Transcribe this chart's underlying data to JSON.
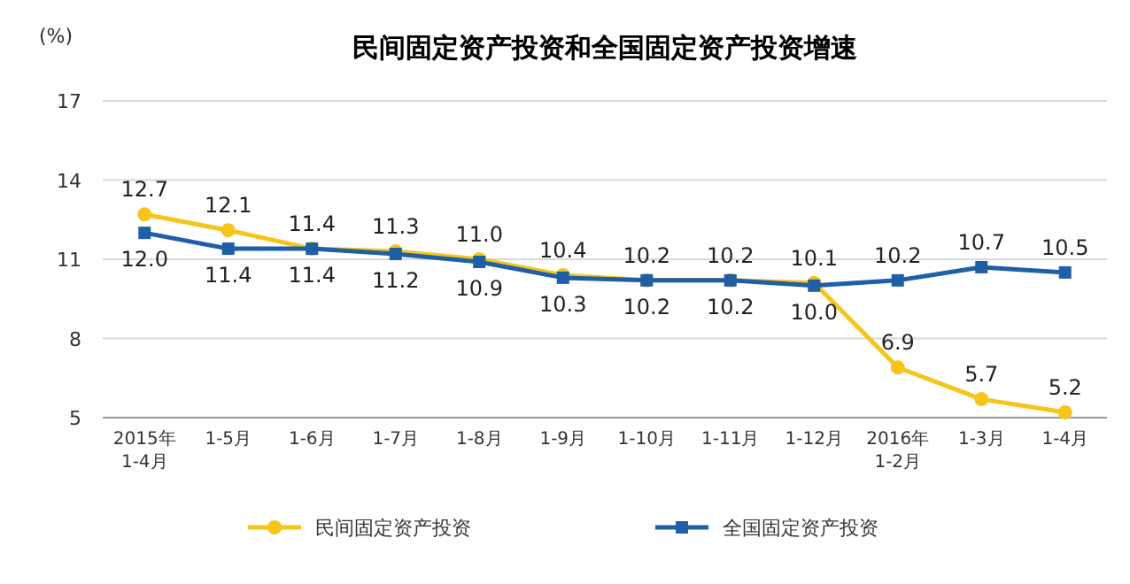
{
  "chart_data": {
    "type": "line",
    "title": "民间固定资产投资和全国固定资产投资增速",
    "ylabel": "(%)",
    "categories": [
      "2015年 1-4月",
      "1-5月",
      "1-6月",
      "1-7月",
      "1-8月",
      "1-9月",
      "1-10月",
      "1-11月",
      "1-12月",
      "2016年 1-2月",
      "1-3月",
      "1-4月"
    ],
    "series": [
      {
        "name": "民间固定资产投资",
        "color": "#f5c518",
        "marker": "circle",
        "values": [
          12.7,
          12.1,
          11.4,
          11.3,
          11.0,
          10.4,
          10.2,
          10.2,
          10.1,
          6.9,
          5.7,
          5.2
        ],
        "value_labels": [
          "12.7",
          "12.1",
          "11.4",
          "11.3",
          "11.0",
          "10.4",
          "10.2",
          "10.2",
          "10.1",
          "6.9",
          "5.7",
          "5.2"
        ]
      },
      {
        "name": "全国固定资产投资",
        "color": "#1f5fa8",
        "marker": "square",
        "values": [
          12.0,
          11.4,
          11.4,
          11.2,
          10.9,
          10.3,
          10.2,
          10.2,
          10.0,
          10.2,
          10.7,
          10.5
        ],
        "value_labels": [
          "12.0",
          "11.4",
          "11.4",
          "11.2",
          "10.9",
          "10.3",
          "10.2",
          "10.2",
          "10.0",
          "10.2",
          "10.7",
          "10.5"
        ]
      }
    ],
    "ylim": [
      5,
      17
    ],
    "yticks": [
      5,
      8,
      11,
      14,
      17
    ],
    "grid": "y",
    "legend": "bottom"
  }
}
